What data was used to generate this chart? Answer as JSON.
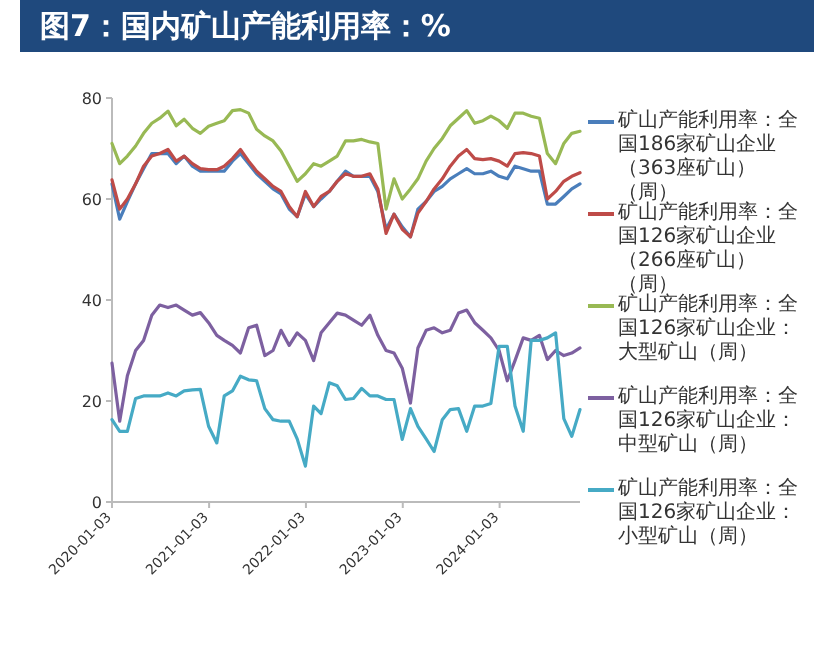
{
  "chart_data": {
    "type": "line",
    "title": "图7：国内矿山产能利用率：%",
    "x": [
      "2020-01-03",
      "2020-02",
      "2020-03",
      "2020-04",
      "2020-05",
      "2020-06",
      "2020-07",
      "2020-08",
      "2020-09",
      "2020-10",
      "2020-11",
      "2020-12",
      "2021-01",
      "2021-02",
      "2021-03",
      "2021-04",
      "2021-05",
      "2021-06",
      "2021-07",
      "2021-08",
      "2021-09",
      "2021-10",
      "2021-11",
      "2021-12",
      "2022-01",
      "2022-02",
      "2022-03",
      "2022-04",
      "2022-05",
      "2022-06",
      "2022-07",
      "2022-08",
      "2022-09",
      "2022-10",
      "2022-11",
      "2022-12",
      "2023-01",
      "2023-02",
      "2023-03",
      "2023-04",
      "2023-05",
      "2023-06",
      "2023-07",
      "2023-08",
      "2023-09",
      "2023-10",
      "2023-11",
      "2023-12",
      "2024-01",
      "2024-02",
      "2024-03",
      "2024-04",
      "2024-05",
      "2024-06",
      "2024-07",
      "2024-08",
      "2024-09",
      "2024-10",
      "2024-11"
    ],
    "xlim": [
      "2020-01-03",
      "2024-11-01"
    ],
    "xticks": [
      "2020-01-03",
      "2021-01-03",
      "2022-01-03",
      "2023-01-03",
      "2024-01-03"
    ],
    "ylim": [
      0,
      80
    ],
    "yticks": [
      0,
      20,
      40,
      60,
      80
    ],
    "grid": false,
    "legend": "right",
    "line_style": "solid",
    "marker": "none",
    "series": [
      {
        "name": "矿山产能利用率：全国186家矿山企业（363座矿山）（周）",
        "color": "#4a7ebb",
        "values": [
          63,
          56,
          59.5,
          63,
          66,
          69,
          69,
          69,
          67,
          68.5,
          66.5,
          65.5,
          65.5,
          65.5,
          65.5,
          67.5,
          69,
          67,
          65,
          63.5,
          62,
          61,
          58,
          56.5,
          61,
          58.5,
          60,
          61.5,
          63.5,
          65.5,
          64.5,
          64.5,
          64.5,
          61.5,
          54,
          57,
          54.5,
          52.5,
          58,
          59.5,
          61.5,
          62.5,
          64,
          65,
          66,
          65,
          65,
          65.5,
          64.5,
          64,
          66.5,
          66,
          65.5,
          65.5,
          59,
          59,
          60.5,
          62,
          63
        ]
      },
      {
        "name": "矿山产能利用率：全国126家矿山企业（266座矿山）（周）",
        "color": "#be4b48",
        "values": [
          63.8,
          58,
          60,
          63,
          66.5,
          68.5,
          69,
          69.8,
          67.5,
          68.5,
          67,
          66,
          65.8,
          65.8,
          66.5,
          68,
          69.8,
          67.5,
          65.5,
          64,
          62.5,
          61.5,
          58.5,
          56.5,
          61.5,
          58.5,
          60.5,
          61.5,
          63.5,
          65,
          64.5,
          64.5,
          65,
          62,
          53.2,
          57,
          54,
          52.5,
          57.2,
          59.5,
          62,
          64,
          66.5,
          68.5,
          69.8,
          68,
          67.8,
          68,
          67.5,
          66.5,
          69,
          69.2,
          69,
          68.5,
          60,
          61.5,
          63.5,
          64.5,
          65.2
        ]
      },
      {
        "name": "矿山产能利用率：全国126家矿山企业：大型矿山（周）",
        "color": "#98b954",
        "values": [
          71,
          67,
          68.5,
          70.5,
          73,
          75,
          76,
          77.4,
          74.5,
          75.8,
          74,
          73,
          74.4,
          75,
          75.5,
          77.5,
          77.7,
          77,
          73.8,
          72.5,
          71.5,
          69.5,
          66.5,
          63.5,
          65,
          67,
          66.5,
          67.5,
          68.5,
          71.5,
          71.5,
          71.8,
          71.3,
          71,
          58,
          64,
          60,
          62,
          64,
          67.5,
          70,
          72,
          74.5,
          76,
          77.5,
          75,
          75.5,
          76.4,
          75.5,
          74,
          77,
          77,
          76.4,
          76,
          69,
          67,
          71,
          73,
          73.4
        ]
      },
      {
        "name": "矿山产能利用率：全国126家矿山企业：中型矿山（周）",
        "color": "#7d60a0",
        "values": [
          27.5,
          16,
          25,
          30,
          32,
          37,
          39,
          38.5,
          39,
          38,
          37,
          37.5,
          35.5,
          33,
          32,
          31,
          29.5,
          34.5,
          35,
          29,
          30,
          34,
          31,
          33.5,
          32,
          28,
          33.5,
          35.5,
          37.4,
          37,
          36,
          35,
          37,
          33,
          30,
          29.5,
          26.5,
          19.6,
          30.5,
          34,
          34.5,
          33.5,
          34,
          37.4,
          38,
          35.5,
          34,
          32.5,
          30,
          24,
          28,
          32.5,
          32,
          33,
          28.2,
          30,
          29,
          29.5,
          30.5
        ]
      },
      {
        "name": "矿山产能利用率：全国126家矿山企业：小型矿山（周）",
        "color": "#46aac5",
        "values": [
          16.3,
          14,
          14,
          20.5,
          21,
          21,
          21,
          21.6,
          21,
          22,
          22.2,
          22.3,
          15,
          11.7,
          21,
          22,
          24.9,
          24.2,
          24,
          18.5,
          16.3,
          16,
          16,
          12.5,
          7.1,
          19,
          17.5,
          23.6,
          23,
          20.3,
          20.5,
          22.5,
          21,
          21,
          20.3,
          20.3,
          12.4,
          18.5,
          15,
          12.5,
          10,
          16.3,
          18.3,
          18.5,
          14,
          19,
          19,
          19.5,
          30.8,
          30.8,
          19,
          14,
          32,
          32,
          32.5,
          33.5,
          16.5,
          13,
          18.3
        ]
      }
    ]
  }
}
